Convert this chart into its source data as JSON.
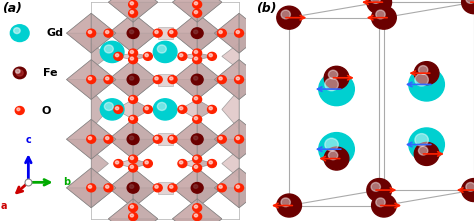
{
  "fig_width": 4.74,
  "fig_height": 2.21,
  "dpi": 100,
  "bg_color": "#ffffff",
  "label_a": "(a)",
  "label_b": "(b)",
  "legend_items": [
    {
      "label": "Gd",
      "color": "#00d0d0",
      "size": 0.038
    },
    {
      "label": "Fe",
      "color": "#6b0000",
      "size": 0.026
    },
    {
      "label": "O",
      "color": "#ff2200",
      "size": 0.018
    }
  ],
  "axis_colors": {
    "c": "#0000ee",
    "b": "#00aa00",
    "a": "#cc0000"
  },
  "poly_color": "#c4a8a8",
  "poly_edge": "#808080",
  "Gd_color": "#00d0d0",
  "Fe_color": "#6b0000",
  "O_color": "#ff2200",
  "arrow_Fe": "#ff2200",
  "arrow_Gd": "#3366ff",
  "box_color": "#aaaaaa"
}
